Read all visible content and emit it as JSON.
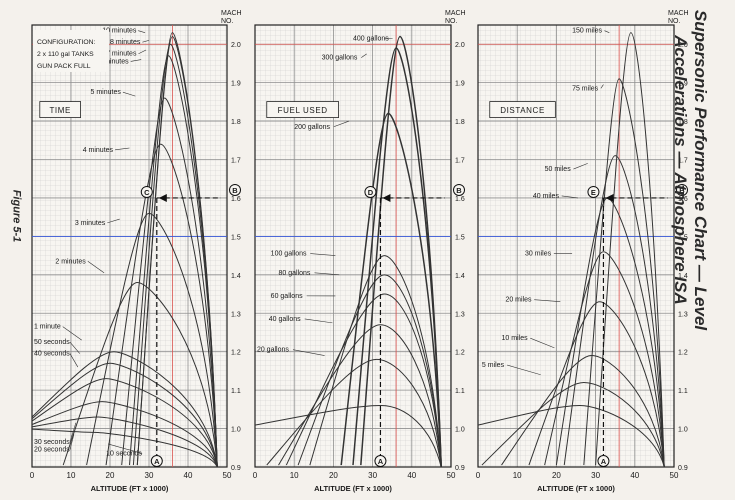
{
  "title_line1": "Supersonic Performance Chart — Level",
  "title_line2": "Accelerations — Atmosphere ISA",
  "figure_label": "Figure 5-1",
  "configuration": {
    "line1": "CONFIGURATION:",
    "line2": "2 x 110 gal TANKS",
    "line3": "GUN PACK FULL"
  },
  "mach_label": {
    "line1": "MACH",
    "line2": "NO."
  },
  "xlabel": "ALTITUDE (FT x 1000)",
  "xticks": [
    0,
    10,
    20,
    30,
    40,
    50
  ],
  "yticks": [
    "0.9",
    "1.0",
    "1.1",
    "1.2",
    "1.3",
    "1.4",
    "1.5",
    "1.6",
    "1.7",
    "1.8",
    "1.9",
    "2.0"
  ],
  "markers": {
    "A": "A",
    "B": "B",
    "C": "C",
    "D": "D",
    "E": "E"
  },
  "colors": {
    "grid": "#b8b8b8",
    "curve": "#333333",
    "red_ref": "#d9534f",
    "blue_ref": "#3b5bdb"
  },
  "chart_data": [
    {
      "type": "line",
      "panel_title": "TIME",
      "xlabel": "ALTITUDE (FT x 1000)",
      "xlim": [
        0,
        50
      ],
      "ylim": [
        0.9,
        2.05
      ],
      "example": {
        "altitude": 32,
        "mach_start": 0.9,
        "mach_end": 1.6
      },
      "series": [
        {
          "name": "10 minutes",
          "peak_x": 36,
          "peak_y": 2.03,
          "start_x": 27,
          "label_x": 18,
          "label_y": 2.03
        },
        {
          "name": "8 minutes",
          "peak_x": 36,
          "peak_y": 2.02,
          "start_x": 27,
          "label_x": 20,
          "label_y": 2.0
        },
        {
          "name": "7 minutes",
          "peak_x": 35.5,
          "peak_y": 2.0,
          "start_x": 26,
          "label_x": 19,
          "label_y": 1.97
        },
        {
          "name": "6 minutes",
          "peak_x": 35,
          "peak_y": 1.97,
          "start_x": 25,
          "label_x": 17,
          "label_y": 1.95
        },
        {
          "name": "5 minutes",
          "peak_x": 34,
          "peak_y": 1.86,
          "start_x": 23,
          "label_x": 15,
          "label_y": 1.87
        },
        {
          "name": "4 minutes",
          "peak_x": 33,
          "peak_y": 1.74,
          "start_x": 19,
          "label_x": 13,
          "label_y": 1.72
        },
        {
          "name": "3 minutes",
          "peak_x": 30,
          "peak_y": 1.56,
          "start_x": 14,
          "label_x": 11,
          "label_y": 1.53
        },
        {
          "name": "2 minutes",
          "peak_x": 27,
          "peak_y": 1.38,
          "start_x": 8,
          "label_x": 6,
          "label_y": 1.43
        },
        {
          "name": "1 minute",
          "peak_x": 21,
          "peak_y": 1.2,
          "start_x": 0,
          "label_x": 0.5,
          "label_y": 1.26
        },
        {
          "name": "50 seconds",
          "peak_x": 20,
          "peak_y": 1.17,
          "start_x": 0,
          "label_x": 0.5,
          "label_y": 1.22
        },
        {
          "name": "40 seconds",
          "peak_x": 19,
          "peak_y": 1.13,
          "start_x": 0,
          "label_x": 0.5,
          "label_y": 1.19
        },
        {
          "name": "30 seconds",
          "peak_x": 18,
          "peak_y": 1.07,
          "start_x": 0,
          "label_x": 0.5,
          "label_y": 0.96
        },
        {
          "name": "20 seconds",
          "peak_x": 17,
          "peak_y": 1.03,
          "start_x": 0,
          "label_x": 0.5,
          "label_y": 0.94
        },
        {
          "name": "10 seconds",
          "peak_x": 16,
          "peak_y": 0.99,
          "start_x": 0,
          "label_x": 19,
          "label_y": 0.93
        }
      ]
    },
    {
      "type": "line",
      "panel_title": "FUEL USED",
      "xlabel": "ALTITUDE (FT x 1000)",
      "xlim": [
        0,
        50
      ],
      "ylim": [
        0.9,
        2.05
      ],
      "example": {
        "altitude": 32,
        "mach_start": 0.9,
        "mach_end": 1.6
      },
      "series": [
        {
          "name": "400 gallons",
          "peak_x": 37,
          "peak_y": 2.02,
          "start_x": 27,
          "label_x": 25,
          "label_y": 2.01
        },
        {
          "name": "300 gallons",
          "peak_x": 36,
          "peak_y": 1.99,
          "start_x": 25,
          "label_x": 17,
          "label_y": 1.96
        },
        {
          "name": "200 gallons",
          "peak_x": 34,
          "peak_y": 1.82,
          "start_x": 22,
          "label_x": 10,
          "label_y": 1.78
        },
        {
          "name": "100 gallons",
          "peak_x": 33,
          "peak_y": 1.45,
          "start_x": 14,
          "label_x": 4,
          "label_y": 1.45
        },
        {
          "name": "80 gallons",
          "peak_x": 33,
          "peak_y": 1.4,
          "start_x": 11,
          "label_x": 6,
          "label_y": 1.4
        },
        {
          "name": "60 gallons",
          "peak_x": 33,
          "peak_y": 1.35,
          "start_x": 8,
          "label_x": 4,
          "label_y": 1.34
        },
        {
          "name": "40 gallons",
          "peak_x": 32,
          "peak_y": 1.27,
          "start_x": 6,
          "label_x": 3.5,
          "label_y": 1.28
        },
        {
          "name": "20 gallons",
          "peak_x": 31,
          "peak_y": 1.18,
          "start_x": 3,
          "label_x": 0.5,
          "label_y": 1.2
        },
        {
          "name": "",
          "peak_x": 32,
          "peak_y": 1.06,
          "start_x": 0,
          "label_x": 0,
          "label_y": 0
        }
      ]
    },
    {
      "type": "line",
      "panel_title": "DISTANCE",
      "xlabel": "ALTITUDE (FT x 1000)",
      "xlim": [
        0,
        50
      ],
      "ylim": [
        0.9,
        2.05
      ],
      "example": {
        "altitude": 32,
        "mach_start": 0.9,
        "mach_end": 1.6
      },
      "series": [
        {
          "name": "150 miles",
          "peak_x": 39,
          "peak_y": 2.03,
          "start_x": 30,
          "label_x": 24,
          "label_y": 2.03
        },
        {
          "name": "75 miles",
          "peak_x": 36,
          "peak_y": 1.91,
          "start_x": 27,
          "label_x": 24,
          "label_y": 1.88
        },
        {
          "name": "50 miles",
          "peak_x": 35,
          "peak_y": 1.71,
          "start_x": 22,
          "label_x": 17,
          "label_y": 1.67
        },
        {
          "name": "40 miles",
          "peak_x": 33,
          "peak_y": 1.6,
          "start_x": 20,
          "label_x": 14,
          "label_y": 1.6
        },
        {
          "name": "30 miles",
          "peak_x": 32,
          "peak_y": 1.46,
          "start_x": 17,
          "label_x": 12,
          "label_y": 1.45
        },
        {
          "name": "20 miles",
          "peak_x": 31,
          "peak_y": 1.33,
          "start_x": 13,
          "label_x": 7,
          "label_y": 1.33
        },
        {
          "name": "10 miles",
          "peak_x": 29,
          "peak_y": 1.19,
          "start_x": 6,
          "label_x": 6,
          "label_y": 1.23
        },
        {
          "name": "5 miles",
          "peak_x": 27,
          "peak_y": 1.12,
          "start_x": 1,
          "label_x": 1,
          "label_y": 1.16
        },
        {
          "name": "",
          "peak_x": 26,
          "peak_y": 1.06,
          "start_x": 0,
          "label_x": 0,
          "label_y": 0
        }
      ]
    }
  ]
}
